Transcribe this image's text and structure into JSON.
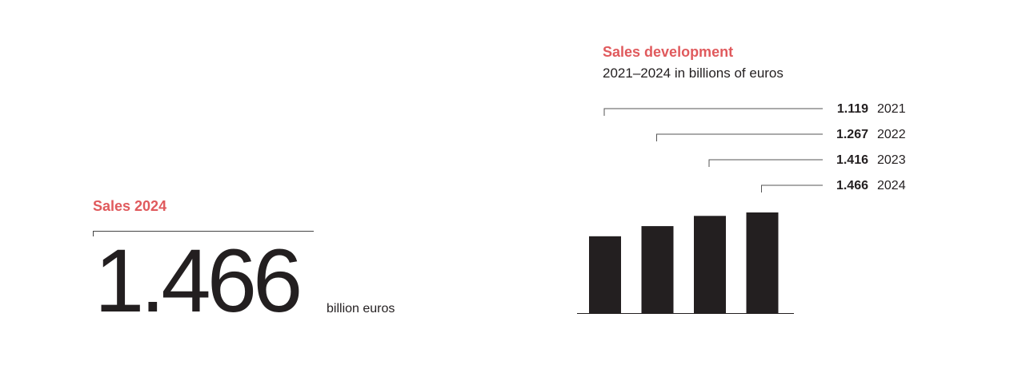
{
  "kpi": {
    "title": "Sales 2024",
    "value": "1.466",
    "unit": "billion euros"
  },
  "chart_title": "Sales development",
  "chart_subtitle": "2021–2024 in billions of euros",
  "chart_data": {
    "type": "bar",
    "title": "Sales development",
    "subtitle": "2021–2024 in billions of euros",
    "categories": [
      "2021",
      "2022",
      "2023",
      "2024"
    ],
    "values": [
      1.119,
      1.267,
      1.416,
      1.466
    ],
    "value_labels": [
      "1.119",
      "1.267",
      "1.416",
      "1.466"
    ],
    "ylim": [
      0,
      1.466
    ],
    "grid": false,
    "legend": "none",
    "bar_color": "#231f20"
  },
  "colors": {
    "accent": "#e05a5d",
    "text": "#231f20",
    "bar": "#231f20"
  }
}
